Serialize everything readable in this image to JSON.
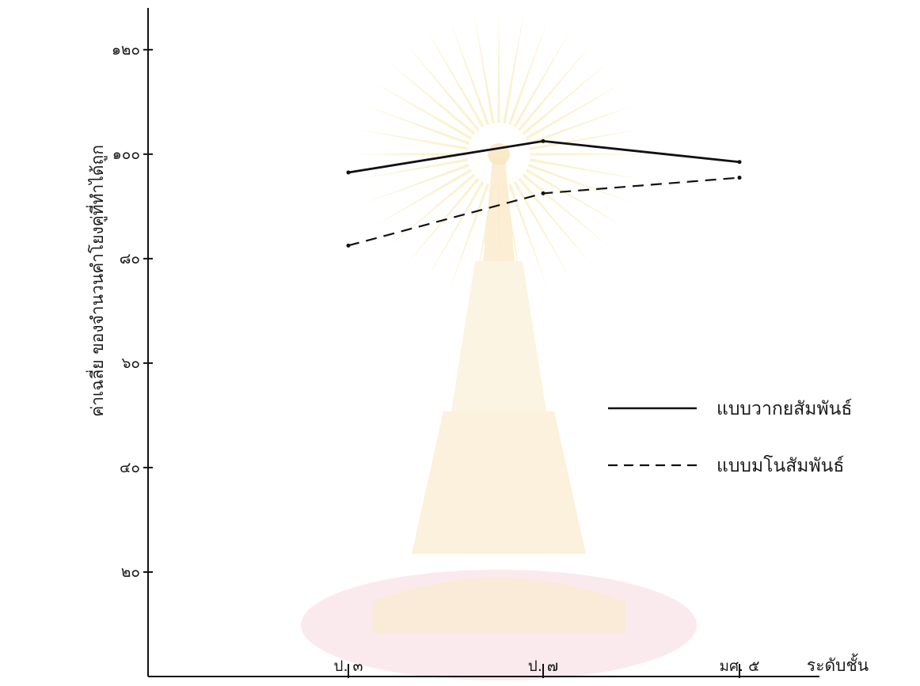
{
  "chart_data": {
    "type": "line",
    "title": "",
    "xlabel": "ระดับชั้น",
    "ylabel": "ค่าเฉลี่ย ของจำนวนคำโยงคู่ที่ทำได้ถูก",
    "categories": [
      "ป. ๓",
      "ป. ๗",
      "มศ. ๕"
    ],
    "ylim": [
      0,
      128
    ],
    "yticks": [
      {
        "value": 20,
        "label": "๒๐"
      },
      {
        "value": 40,
        "label": "๔๐"
      },
      {
        "value": 60,
        "label": "๖๐"
      },
      {
        "value": 80,
        "label": "๘๐"
      },
      {
        "value": 100,
        "label": "๑๐๐"
      },
      {
        "value": 120,
        "label": "๑๒๐"
      }
    ],
    "series": [
      {
        "name": "แบบวากยสัมพันธ์",
        "values": [
          96.5,
          102.5,
          98.5
        ],
        "style": "solid",
        "color": "#111111"
      },
      {
        "name": "แบบมโนสัมพันธ์",
        "values": [
          82.5,
          92.5,
          95.5
        ],
        "style": "dashed",
        "color": "#111111"
      }
    ],
    "legend_position": "bottom-right",
    "grid": false
  }
}
